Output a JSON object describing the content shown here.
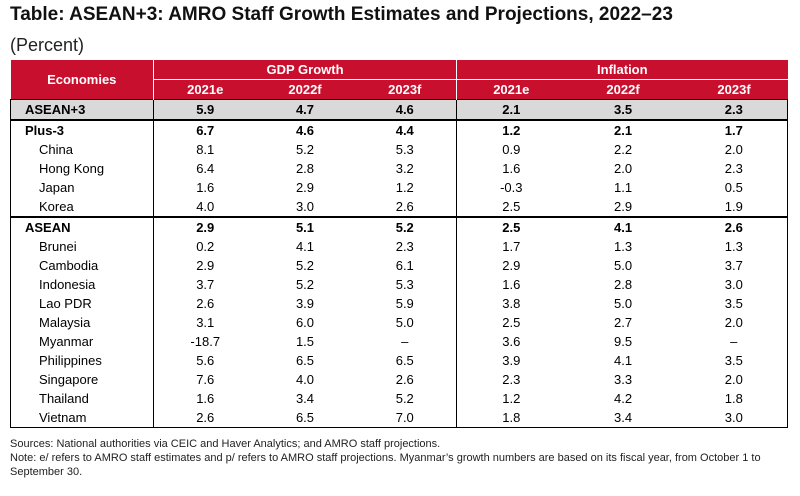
{
  "title": "Table: ASEAN+3: AMRO Staff Growth Estimates and Projections, 2022–23",
  "subtitle": "(Percent)",
  "header": {
    "economies": "Economies",
    "gdp_group": "GDP Growth",
    "inflation_group": "Inflation",
    "years": [
      "2021e",
      "2022f",
      "2023f",
      "2021e",
      "2022f",
      "2023f"
    ]
  },
  "rows": [
    {
      "name": "ASEAN+3",
      "values": [
        "5.9",
        "4.7",
        "4.6",
        "2.1",
        "3.5",
        "2.3"
      ]
    },
    {
      "name": "Plus-3",
      "values": [
        "6.7",
        "4.6",
        "4.4",
        "1.2",
        "2.1",
        "1.7"
      ]
    },
    {
      "name": "China",
      "values": [
        "8.1",
        "5.2",
        "5.3",
        "0.9",
        "2.2",
        "2.0"
      ]
    },
    {
      "name": "Hong Kong",
      "values": [
        "6.4",
        "2.8",
        "3.2",
        "1.6",
        "2.0",
        "2.3"
      ]
    },
    {
      "name": "Japan",
      "values": [
        "1.6",
        "2.9",
        "1.2",
        "-0.3",
        "1.1",
        "0.5"
      ]
    },
    {
      "name": "Korea",
      "values": [
        "4.0",
        "3.0",
        "2.6",
        "2.5",
        "2.9",
        "1.9"
      ]
    },
    {
      "name": "ASEAN",
      "values": [
        "2.9",
        "5.1",
        "5.2",
        "2.5",
        "4.1",
        "2.6"
      ]
    },
    {
      "name": "Brunei",
      "values": [
        "0.2",
        "4.1",
        "2.3",
        "1.7",
        "1.3",
        "1.3"
      ]
    },
    {
      "name": "Cambodia",
      "values": [
        "2.9",
        "5.2",
        "6.1",
        "2.9",
        "5.0",
        "3.7"
      ]
    },
    {
      "name": "Indonesia",
      "values": [
        "3.7",
        "5.2",
        "5.3",
        "1.6",
        "2.8",
        "3.0"
      ]
    },
    {
      "name": "Lao PDR",
      "values": [
        "2.6",
        "3.9",
        "5.9",
        "3.8",
        "5.0",
        "3.5"
      ]
    },
    {
      "name": "Malaysia",
      "values": [
        "3.1",
        "6.0",
        "5.0",
        "2.5",
        "2.7",
        "2.0"
      ]
    },
    {
      "name": "Myanmar",
      "values": [
        "-18.7",
        "1.5",
        "–",
        "3.6",
        "9.5",
        "–"
      ]
    },
    {
      "name": "Philippines",
      "values": [
        "5.6",
        "6.5",
        "6.5",
        "3.9",
        "4.1",
        "3.5"
      ]
    },
    {
      "name": "Singapore",
      "values": [
        "7.6",
        "4.0",
        "2.6",
        "2.3",
        "3.3",
        "2.0"
      ]
    },
    {
      "name": "Thailand",
      "values": [
        "1.6",
        "3.4",
        "5.2",
        "1.2",
        "4.2",
        "1.8"
      ]
    },
    {
      "name": "Vietnam",
      "values": [
        "2.6",
        "6.5",
        "7.0",
        "1.8",
        "3.4",
        "3.0"
      ]
    }
  ],
  "notes": {
    "sources": "Sources: National authorities via CEIC and Haver Analytics; and AMRO staff projections.",
    "note": "Note: e/ refers to AMRO staff estimates and p/ refers to AMRO staff projections. Myanmar’s growth numbers are based on its fiscal year, from October 1 to September 30."
  }
}
